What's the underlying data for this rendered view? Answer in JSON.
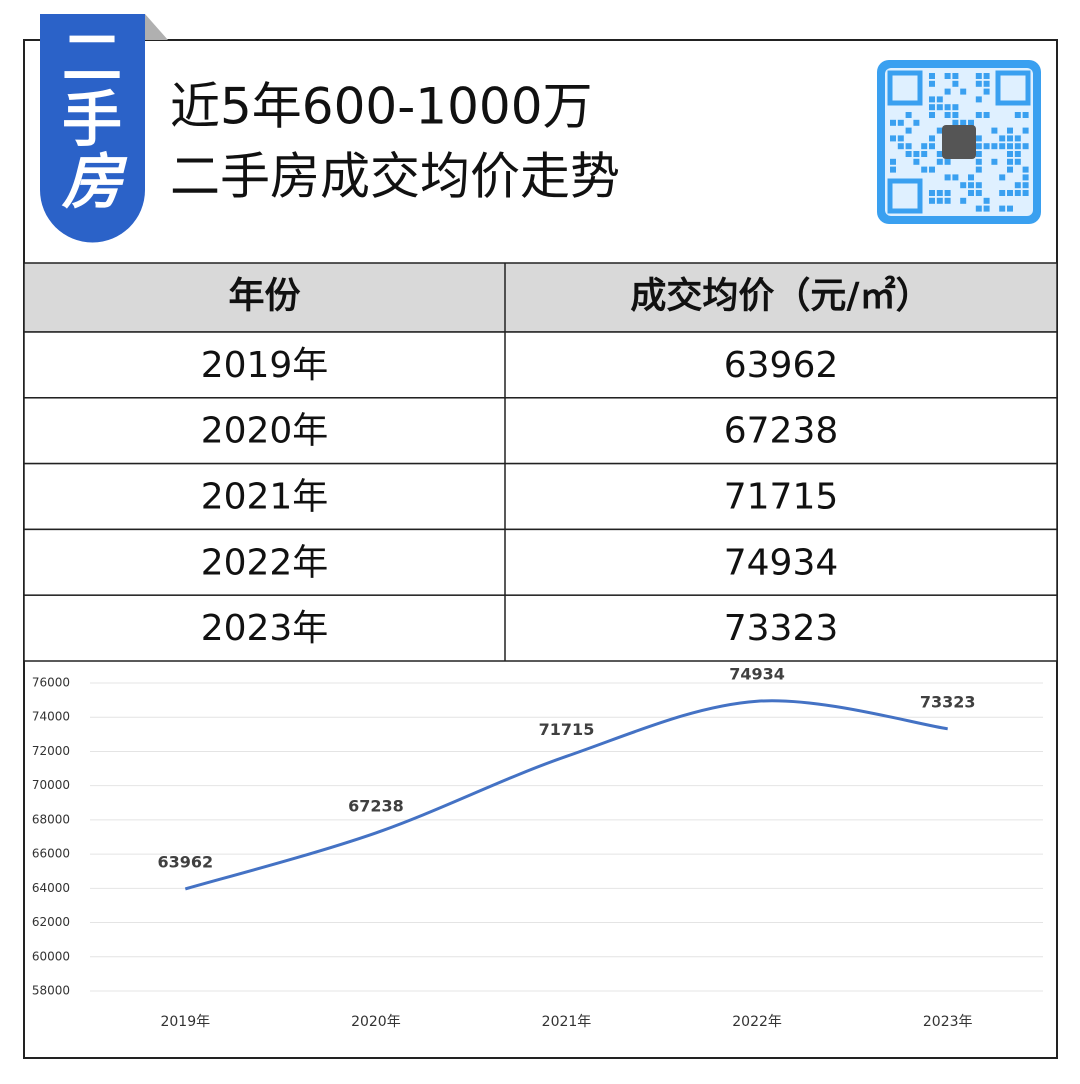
{
  "header": {
    "badge": [
      "二",
      "手",
      "房"
    ],
    "title": [
      "近5年600-1000万",
      "二手房成交均价走势"
    ]
  },
  "table": {
    "columns": [
      "年份",
      "成交均价（元/㎡）"
    ],
    "rows": [
      [
        "2019年",
        "63962"
      ],
      [
        "2020年",
        "67238"
      ],
      [
        "2021年",
        "71715"
      ],
      [
        "2022年",
        "74934"
      ],
      [
        "2023年",
        "73323"
      ]
    ]
  },
  "chart_data": {
    "type": "line",
    "categories": [
      "2019年",
      "2020年",
      "2021年",
      "2022年",
      "2023年"
    ],
    "series": [
      {
        "color": "#4472c4",
        "values": [
          63962,
          67238,
          71715,
          74934,
          73323
        ]
      }
    ],
    "ylim": [
      58000,
      76000
    ],
    "yticks": [
      58000,
      60000,
      62000,
      64000,
      66000,
      68000,
      70000,
      72000,
      74000,
      76000
    ],
    "grid": true,
    "smooth": true,
    "data_labels": true
  }
}
